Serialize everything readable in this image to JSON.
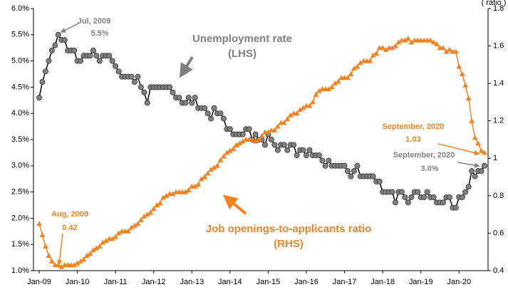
{
  "chart_data": {
    "type": "line",
    "y2label": "( ratio )",
    "categories": [
      "Jan-09",
      null,
      null,
      null,
      null,
      null,
      null,
      null,
      null,
      null,
      null,
      null,
      "Jan-10",
      null,
      null,
      null,
      null,
      null,
      null,
      null,
      null,
      null,
      null,
      null,
      "Jan-11",
      null,
      null,
      null,
      null,
      null,
      null,
      null,
      null,
      null,
      null,
      null,
      "Jan-12",
      null,
      null,
      null,
      null,
      null,
      null,
      null,
      null,
      null,
      null,
      null,
      "Jan-13",
      null,
      null,
      null,
      null,
      null,
      null,
      null,
      null,
      null,
      null,
      null,
      "Jan-14",
      null,
      null,
      null,
      null,
      null,
      null,
      null,
      null,
      null,
      null,
      null,
      "Jan-15",
      null,
      null,
      null,
      null,
      null,
      null,
      null,
      null,
      null,
      null,
      null,
      "Jan-16",
      null,
      null,
      null,
      null,
      null,
      null,
      null,
      null,
      null,
      null,
      null,
      "Jan-17",
      null,
      null,
      null,
      null,
      null,
      null,
      null,
      null,
      null,
      null,
      null,
      "Jan-18",
      null,
      null,
      null,
      null,
      null,
      null,
      null,
      null,
      null,
      null,
      null,
      "Jan-19",
      null,
      null,
      null,
      null,
      null,
      null,
      null,
      null,
      null,
      null,
      null,
      "Jan-20",
      null,
      null,
      null,
      null,
      null,
      null,
      null,
      null
    ],
    "series": [
      {
        "name": "Unemployment rate",
        "color": "#808080",
        "line_color": "#000000",
        "marker": "circle",
        "values": [
          4.3,
          4.6,
          4.8,
          5.0,
          5.2,
          5.3,
          5.5,
          5.4,
          5.4,
          5.2,
          5.2,
          5.2,
          5.0,
          5.0,
          5.1,
          5.1,
          5.1,
          5.2,
          5.1,
          5.0,
          5.1,
          5.1,
          5.1,
          5.0,
          4.9,
          4.8,
          4.7,
          4.7,
          4.7,
          4.7,
          4.6,
          4.7,
          4.5,
          4.4,
          4.2,
          4.5,
          4.5,
          4.5,
          4.5,
          4.5,
          4.5,
          4.5,
          4.4,
          4.3,
          4.3,
          4.2,
          4.2,
          4.3,
          4.2,
          4.3,
          4.1,
          4.1,
          4.1,
          4.0,
          3.9,
          4.1,
          4.0,
          4.0,
          3.9,
          3.7,
          3.7,
          3.6,
          3.6,
          3.6,
          3.6,
          3.7,
          3.7,
          3.5,
          3.6,
          3.5,
          3.5,
          3.4,
          3.6,
          3.5,
          3.4,
          3.3,
          3.4,
          3.4,
          3.3,
          3.4,
          3.4,
          3.2,
          3.3,
          3.3,
          3.2,
          3.3,
          3.2,
          3.2,
          3.2,
          3.1,
          3.0,
          3.1,
          3.0,
          3.0,
          3.0,
          3.0,
          3.0,
          2.9,
          2.8,
          2.9,
          3.0,
          2.8,
          2.8,
          2.8,
          2.8,
          2.8,
          2.7,
          2.7,
          2.5,
          2.5,
          2.5,
          2.5,
          2.3,
          2.5,
          2.5,
          2.4,
          2.3,
          2.4,
          2.5,
          2.5,
          2.4,
          2.4,
          2.5,
          2.4,
          2.4,
          2.3,
          2.3,
          2.3,
          2.4,
          2.4,
          2.2,
          2.2,
          2.4,
          2.4,
          2.5,
          2.6,
          2.9,
          2.8,
          2.9,
          2.9,
          3.0
        ]
      },
      {
        "name": "Job openings-to-applicants ratio",
        "color": "#f58220",
        "line_color": "#f58220",
        "marker": "triangle",
        "axis": "y2",
        "values": [
          0.65,
          0.59,
          0.53,
          0.48,
          0.45,
          0.43,
          0.43,
          0.42,
          0.43,
          0.43,
          0.43,
          0.43,
          0.44,
          0.45,
          0.46,
          0.48,
          0.49,
          0.51,
          0.52,
          0.53,
          0.55,
          0.56,
          0.57,
          0.57,
          0.58,
          0.6,
          0.61,
          0.61,
          0.61,
          0.63,
          0.64,
          0.65,
          0.67,
          0.69,
          0.7,
          0.71,
          0.73,
          0.75,
          0.76,
          0.79,
          0.8,
          0.81,
          0.81,
          0.82,
          0.82,
          0.82,
          0.82,
          0.83,
          0.85,
          0.85,
          0.86,
          0.89,
          0.9,
          0.92,
          0.94,
          0.95,
          0.96,
          0.99,
          1.01,
          1.03,
          1.04,
          1.05,
          1.07,
          1.08,
          1.09,
          1.1,
          1.1,
          1.1,
          1.09,
          1.1,
          1.12,
          1.14,
          1.14,
          1.15,
          1.15,
          1.17,
          1.19,
          1.19,
          1.21,
          1.23,
          1.24,
          1.24,
          1.26,
          1.27,
          1.28,
          1.28,
          1.3,
          1.34,
          1.36,
          1.37,
          1.37,
          1.37,
          1.38,
          1.4,
          1.41,
          1.43,
          1.43,
          1.43,
          1.45,
          1.48,
          1.49,
          1.51,
          1.52,
          1.52,
          1.52,
          1.55,
          1.56,
          1.59,
          1.59,
          1.58,
          1.59,
          1.59,
          1.6,
          1.62,
          1.63,
          1.63,
          1.64,
          1.62,
          1.63,
          1.63,
          1.63,
          1.63,
          1.63,
          1.63,
          1.62,
          1.61,
          1.59,
          1.59,
          1.57,
          1.58,
          1.57,
          1.57,
          1.49,
          1.45,
          1.39,
          1.32,
          1.2,
          1.11,
          1.08,
          1.04,
          1.03
        ]
      }
    ],
    "ylim": [
      1.0,
      6.0
    ],
    "yticks": [
      {
        "value": 1.0,
        "label": "1.0%"
      },
      {
        "value": 1.5,
        "label": "1.5%"
      },
      {
        "value": 2.0,
        "label": "2.0%"
      },
      {
        "value": 2.5,
        "label": "2.5%"
      },
      {
        "value": 3.0,
        "label": "3.0%"
      },
      {
        "value": 3.5,
        "label": "3.5%"
      },
      {
        "value": 4.0,
        "label": "4.0%"
      },
      {
        "value": 4.5,
        "label": "4.5%"
      },
      {
        "value": 5.0,
        "label": "5.0%"
      },
      {
        "value": 5.5,
        "label": "5.5%"
      },
      {
        "value": 6.0,
        "label": "6.0%"
      }
    ],
    "y2lim": [
      0.4,
      1.8
    ],
    "y2ticks": [
      0.4,
      0.6,
      0.8,
      1,
      1.2,
      1.4,
      1.6,
      1.8
    ],
    "grid": false,
    "annotations": [
      "Jul, 2009",
      "5.5%",
      "Unemployment rate",
      "(LHS)",
      "Aug, 2009",
      "0.42",
      "Job openings-to-applicants ratio",
      "(RHS)",
      "September, 2020",
      "1.03",
      "September, 2020",
      "3.0%"
    ]
  }
}
